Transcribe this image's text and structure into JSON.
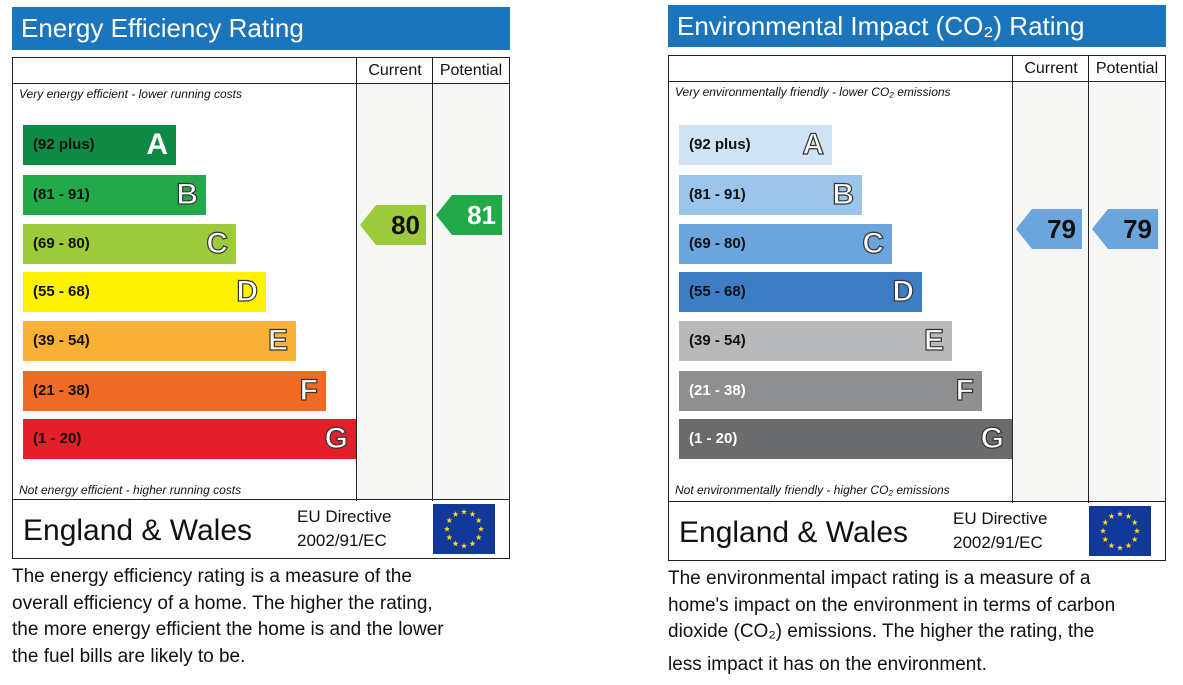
{
  "energy": {
    "title": "Energy Efficiency Rating",
    "col_current": "Current",
    "col_potential": "Potential",
    "top_caption": "Very energy efficient - lower running costs",
    "bottom_caption": "Not energy efficient - higher running costs",
    "bands": [
      {
        "range": "(92 plus)",
        "letter": "A",
        "color": "#0f8a46"
      },
      {
        "range": "(81 - 91)",
        "letter": "B",
        "color": "#22a94a"
      },
      {
        "range": "(69 - 80)",
        "letter": "C",
        "color": "#9cca3b"
      },
      {
        "range": "(55 - 68)",
        "letter": "D",
        "color": "#fef200"
      },
      {
        "range": "(39 - 54)",
        "letter": "E",
        "color": "#f8b134"
      },
      {
        "range": "(21 - 38)",
        "letter": "F",
        "color": "#ef6b23"
      },
      {
        "range": "(1 - 20)",
        "letter": "G",
        "color": "#e3202a"
      }
    ],
    "current": {
      "value": "80",
      "band": "C",
      "color": "#9cca3b"
    },
    "potential": {
      "value": "81",
      "band": "B",
      "color": "#22a94a"
    },
    "footer_country": "England & Wales",
    "footer_directive_1": "EU Directive",
    "footer_directive_2": "2002/91/EC",
    "description": [
      "The energy efficiency rating is a measure of the",
      "overall efficiency of a home. The higher the rating,",
      "the more energy efficient the home is and the lower",
      "the fuel bills are likely to be."
    ]
  },
  "environment": {
    "title": "Environmental Impact (CO₂) Rating",
    "col_current": "Current",
    "col_potential": "Potential",
    "top_caption": "Very environmentally friendly - lower CO₂ emissions",
    "bottom_caption": "Not environmentally friendly - higher CO₂ emissions",
    "bands": [
      {
        "range": "(92 plus)",
        "letter": "A",
        "color": "#cfe3f5"
      },
      {
        "range": "(81 - 91)",
        "letter": "B",
        "color": "#9cc5eb"
      },
      {
        "range": "(69 - 80)",
        "letter": "C",
        "color": "#6ca4dc"
      },
      {
        "range": "(55 - 68)",
        "letter": "D",
        "color": "#3c7dc4"
      },
      {
        "range": "(39 - 54)",
        "letter": "E",
        "color": "#b8b9bb"
      },
      {
        "range": "(21 - 38)",
        "letter": "F",
        "color": "#8e8f91"
      },
      {
        "range": "(1 - 20)",
        "letter": "G",
        "color": "#6a6b6d"
      }
    ],
    "current": {
      "value": "79",
      "band": "C",
      "color": "#6ca4dc"
    },
    "potential": {
      "value": "79",
      "band": "C",
      "color": "#6ca4dc"
    },
    "footer_country": "England & Wales",
    "footer_directive_1": "EU Directive",
    "footer_directive_2": "2002/91/EC",
    "description": [
      "The environmental impact rating is a measure of a",
      "home's impact on the environment in terms of carbon",
      "dioxide (CO₂) emissions. The higher the rating, the",
      "less impact it has on the environment."
    ]
  },
  "colors": {
    "title_bar": "#1b75bc",
    "eu_flag": "#12389a",
    "eu_stars": "#ffdd00"
  }
}
